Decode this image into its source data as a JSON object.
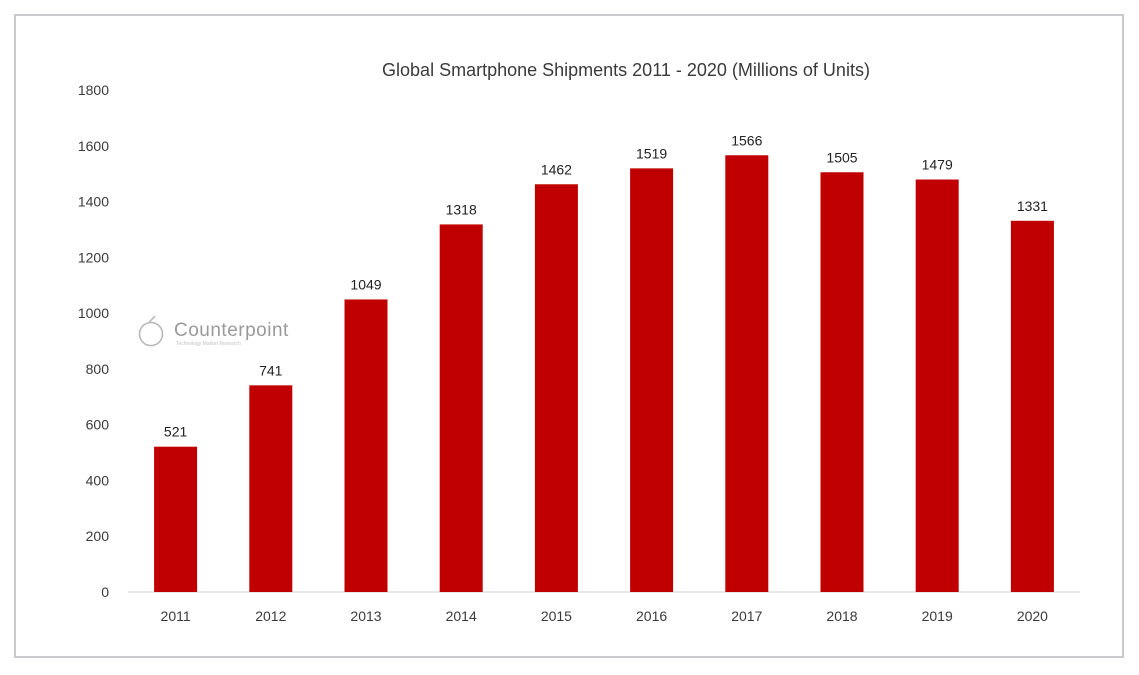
{
  "chart_data": {
    "type": "bar",
    "title": "Global Smartphone Shipments 2011 - 2020 (Millions of Units)",
    "xlabel": "",
    "ylabel": "",
    "categories": [
      "2011",
      "2012",
      "2013",
      "2014",
      "2015",
      "2016",
      "2017",
      "2018",
      "2019",
      "2020"
    ],
    "values": [
      521,
      741,
      1049,
      1318,
      1462,
      1519,
      1566,
      1505,
      1479,
      1331
    ],
    "data_labels": [
      "521",
      "741",
      "1049",
      "1318",
      "1462",
      "1519",
      "1566",
      "1505",
      "1479",
      "1331"
    ],
    "ylim": [
      0,
      1800
    ],
    "y_ticks": [
      "0",
      "200",
      "400",
      "600",
      "800",
      "1000",
      "1200",
      "1400",
      "1600",
      "1800"
    ],
    "grid": false,
    "legend": "none",
    "bar_color": "#c00000",
    "axis_color": "#d9d9d9"
  },
  "watermark": {
    "brand": "Counterpoint",
    "tagline": "Technology Market Research",
    "icon": "counterpoint-logo-icon"
  }
}
